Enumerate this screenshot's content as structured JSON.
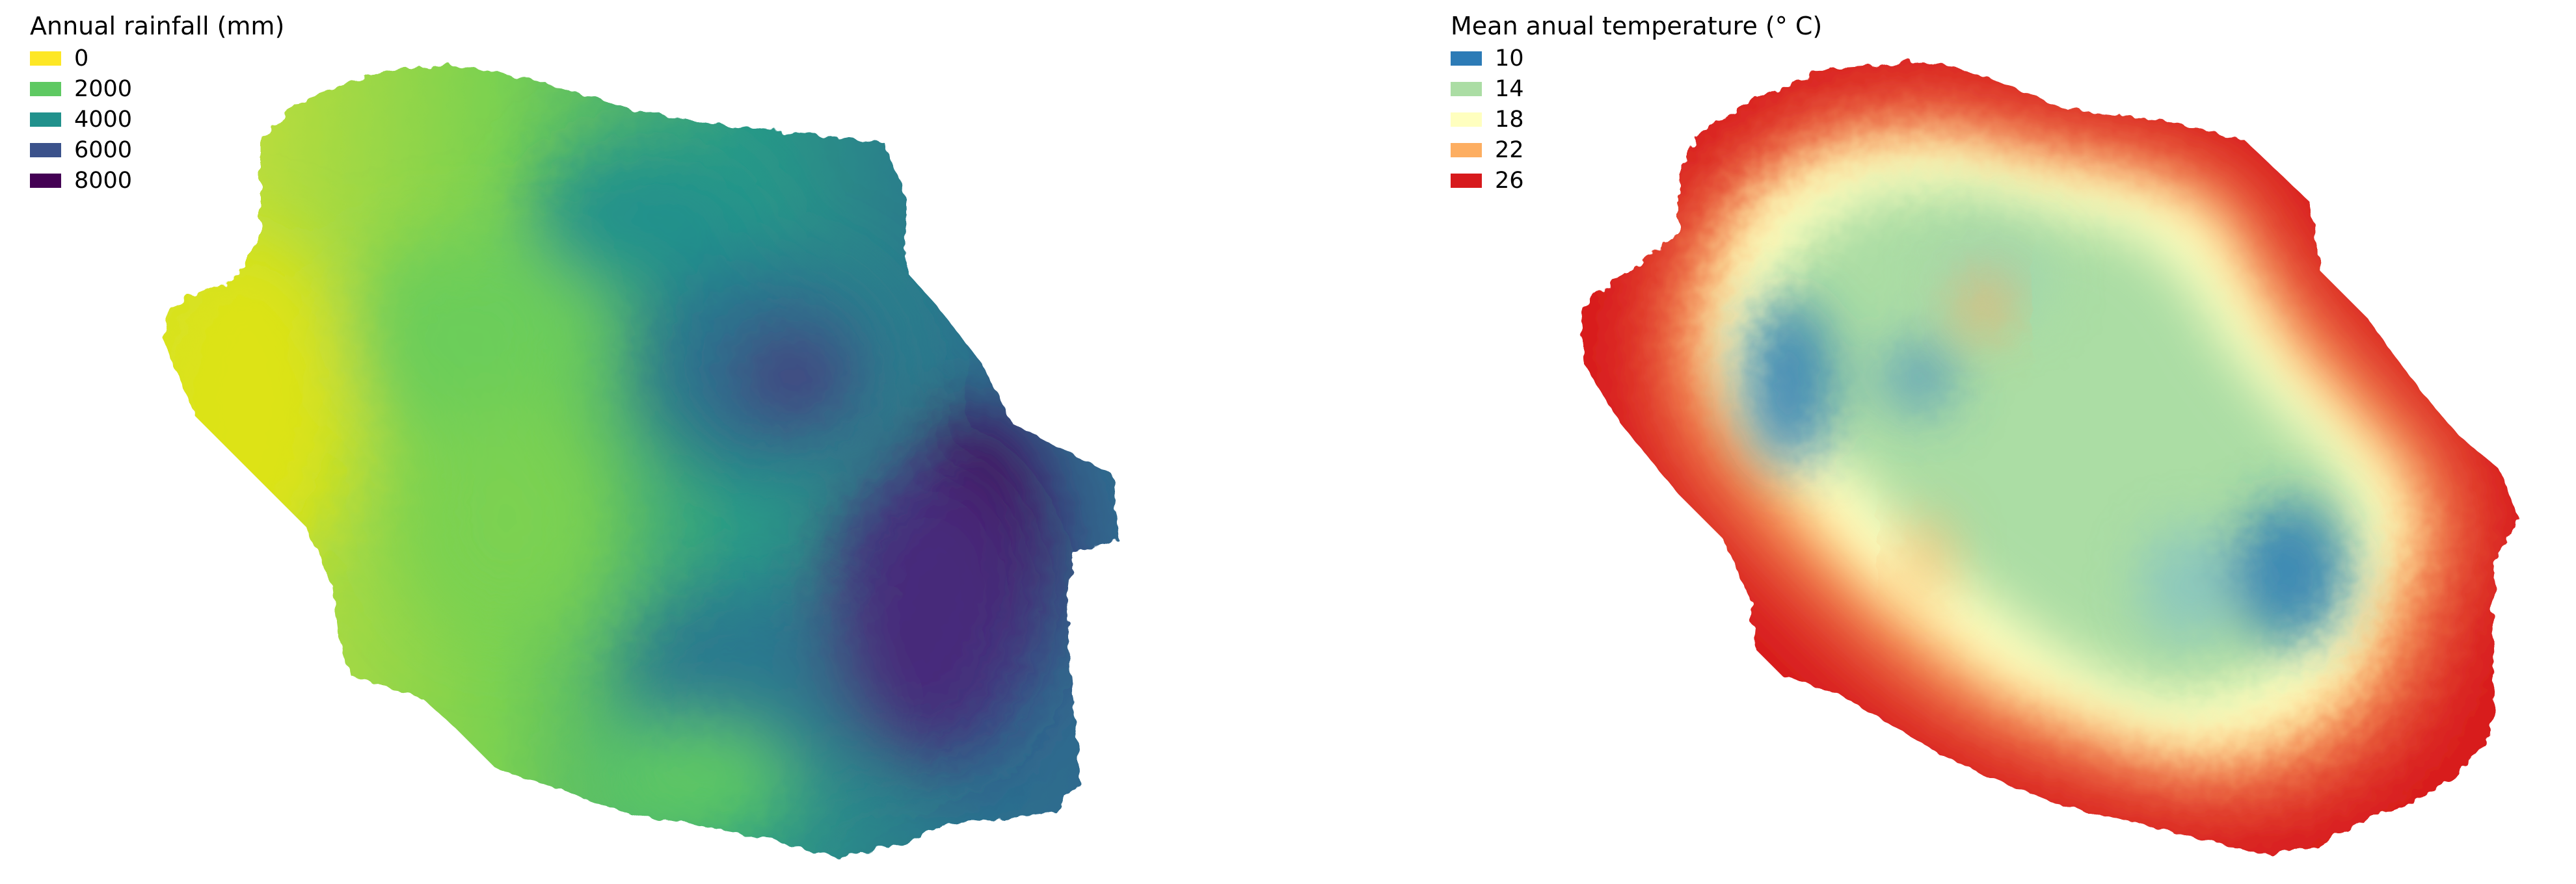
{
  "maps": [
    {
      "legend_title": "Annual rainfall (mm)",
      "legend": [
        {
          "label": "0",
          "color": "#fde725"
        },
        {
          "label": "2000",
          "color": "#5ec962"
        },
        {
          "label": "4000",
          "color": "#21918c"
        },
        {
          "label": "6000",
          "color": "#3b528b"
        },
        {
          "label": "8000",
          "color": "#440154"
        }
      ]
    },
    {
      "legend_title": "Mean anual temperature (° C)",
      "legend": [
        {
          "label": "10",
          "color": "#2c7bb6"
        },
        {
          "label": "14",
          "color": "#abdda4"
        },
        {
          "label": "18",
          "color": "#ffffbf"
        },
        {
          "label": "22",
          "color": "#fdae61"
        },
        {
          "label": "26",
          "color": "#d7191c"
        }
      ]
    }
  ]
}
